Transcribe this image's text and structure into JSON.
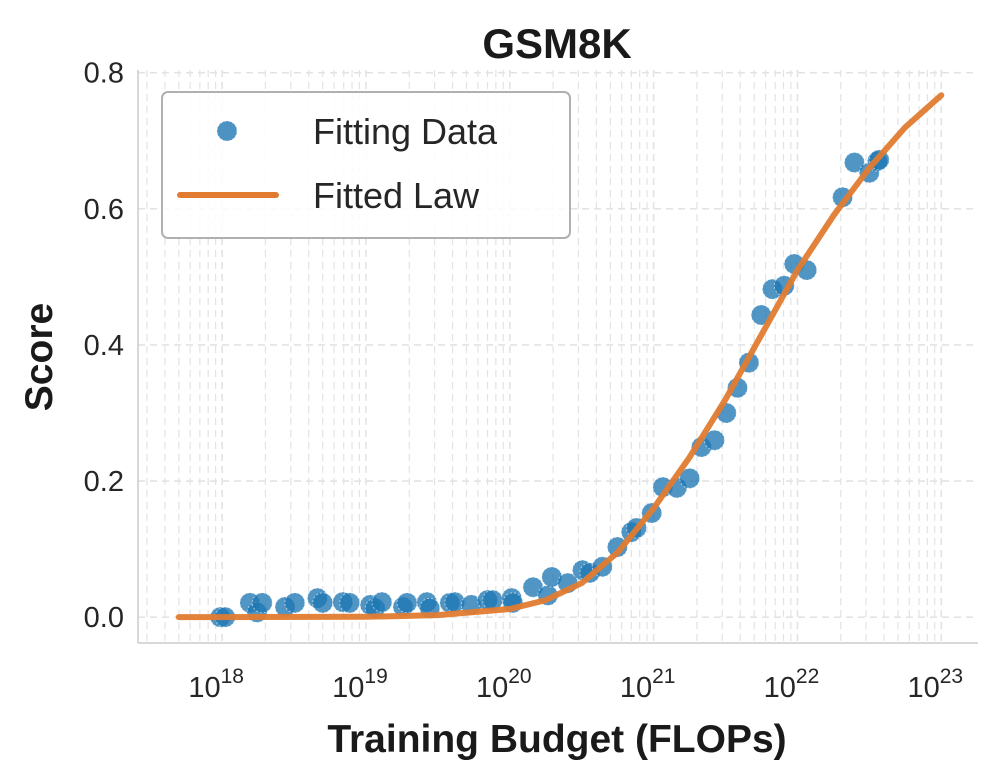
{
  "chart_data": {
    "type": "scatter",
    "title": "GSM8K",
    "xlabel": "Training Budget (FLOPs)",
    "ylabel": "Score",
    "xscale": "log",
    "xlim": [
      2.6e+17,
      1.8e+23
    ],
    "ylim": [
      -0.038,
      0.804
    ],
    "xticks": [
      1e+18,
      1e+19,
      1e+20,
      1e+21,
      1e+22,
      1e+23
    ],
    "xtick_labels": [
      {
        "base": "10",
        "exp": "18"
      },
      {
        "base": "10",
        "exp": "19"
      },
      {
        "base": "10",
        "exp": "20"
      },
      {
        "base": "10",
        "exp": "21"
      },
      {
        "base": "10",
        "exp": "22"
      },
      {
        "base": "10",
        "exp": "23"
      }
    ],
    "yticks": [
      0.0,
      0.2,
      0.4,
      0.6,
      0.8
    ],
    "ytick_labels": [
      "0.0",
      "0.2",
      "0.4",
      "0.6",
      "0.8"
    ],
    "grid": true,
    "legend_placement": "upper-left",
    "series": [
      {
        "name": "Fitting Data",
        "kind": "scatter",
        "color": "#1f77b4",
        "points": [
          [
            9.7e+17,
            0.0
          ],
          [
            1.05e+18,
            0.0
          ],
          [
            1.56e+18,
            0.021
          ],
          [
            1.75e+18,
            0.007
          ],
          [
            1.9e+18,
            0.021
          ],
          [
            2.74e+18,
            0.015
          ],
          [
            3.2e+18,
            0.021
          ],
          [
            4.6e+18,
            0.028
          ],
          [
            5e+18,
            0.021
          ],
          [
            6.9e+18,
            0.022
          ],
          [
            7.7e+18,
            0.021
          ],
          [
            1.07e+19,
            0.018
          ],
          [
            1.16e+19,
            0.013
          ],
          [
            1.29e+19,
            0.022
          ],
          [
            1.81e+19,
            0.015
          ],
          [
            1.93e+19,
            0.021
          ],
          [
            2.65e+19,
            0.022
          ],
          [
            2.78e+19,
            0.013
          ],
          [
            3.83e+19,
            0.021
          ],
          [
            4.15e+19,
            0.022
          ],
          [
            5.4e+19,
            0.018
          ],
          [
            7e+19,
            0.025
          ],
          [
            7.6e+19,
            0.025
          ],
          [
            1.03e+20,
            0.028
          ],
          [
            1.05e+20,
            0.021
          ],
          [
            1.45e+20,
            0.044
          ],
          [
            1.84e+20,
            0.032
          ],
          [
            1.96e+20,
            0.059
          ],
          [
            2.53e+20,
            0.05
          ],
          [
            3.2e+20,
            0.069
          ],
          [
            3.6e+20,
            0.065
          ],
          [
            4.4e+20,
            0.074
          ],
          [
            5.6e+20,
            0.103
          ],
          [
            7e+20,
            0.125
          ],
          [
            7.6e+20,
            0.131
          ],
          [
            9.7e+20,
            0.153
          ],
          [
            1.16e+21,
            0.191
          ],
          [
            1.45e+21,
            0.19
          ],
          [
            1.78e+21,
            0.204
          ],
          [
            2.15e+21,
            0.25
          ],
          [
            2.65e+21,
            0.26
          ],
          [
            3.2e+21,
            0.3
          ],
          [
            3.83e+21,
            0.337
          ],
          [
            4.6e+21,
            0.374
          ],
          [
            5.6e+21,
            0.444
          ],
          [
            6.7e+21,
            0.482
          ],
          [
            8.1e+21,
            0.487
          ],
          [
            9.5e+21,
            0.519
          ],
          [
            1.16e+22,
            0.51
          ],
          [
            2.06e+22,
            0.617
          ],
          [
            2.49e+22,
            0.668
          ],
          [
            3.16e+22,
            0.653
          ],
          [
            3.6e+22,
            0.67
          ],
          [
            3.7e+22,
            0.672
          ]
        ]
      },
      {
        "name": "Fitted Law",
        "kind": "line",
        "color": "#e07b30",
        "points": [
          [
            5e+17,
            0.0
          ],
          [
            1e+18,
            0.0
          ],
          [
            1e+19,
            0.0005
          ],
          [
            3.16e+19,
            0.003
          ],
          [
            1e+20,
            0.012
          ],
          [
            1.78e+20,
            0.025
          ],
          [
            3.16e+20,
            0.05
          ],
          [
            5.62e+20,
            0.095
          ],
          [
            1e+21,
            0.16
          ],
          [
            1.78e+21,
            0.235
          ],
          [
            3.16e+21,
            0.32
          ],
          [
            5.62e+21,
            0.415
          ],
          [
            1e+22,
            0.51
          ],
          [
            1.78e+22,
            0.59
          ],
          [
            3.16e+22,
            0.66
          ],
          [
            5.62e+22,
            0.72
          ],
          [
            1e+23,
            0.767
          ]
        ]
      }
    ]
  }
}
